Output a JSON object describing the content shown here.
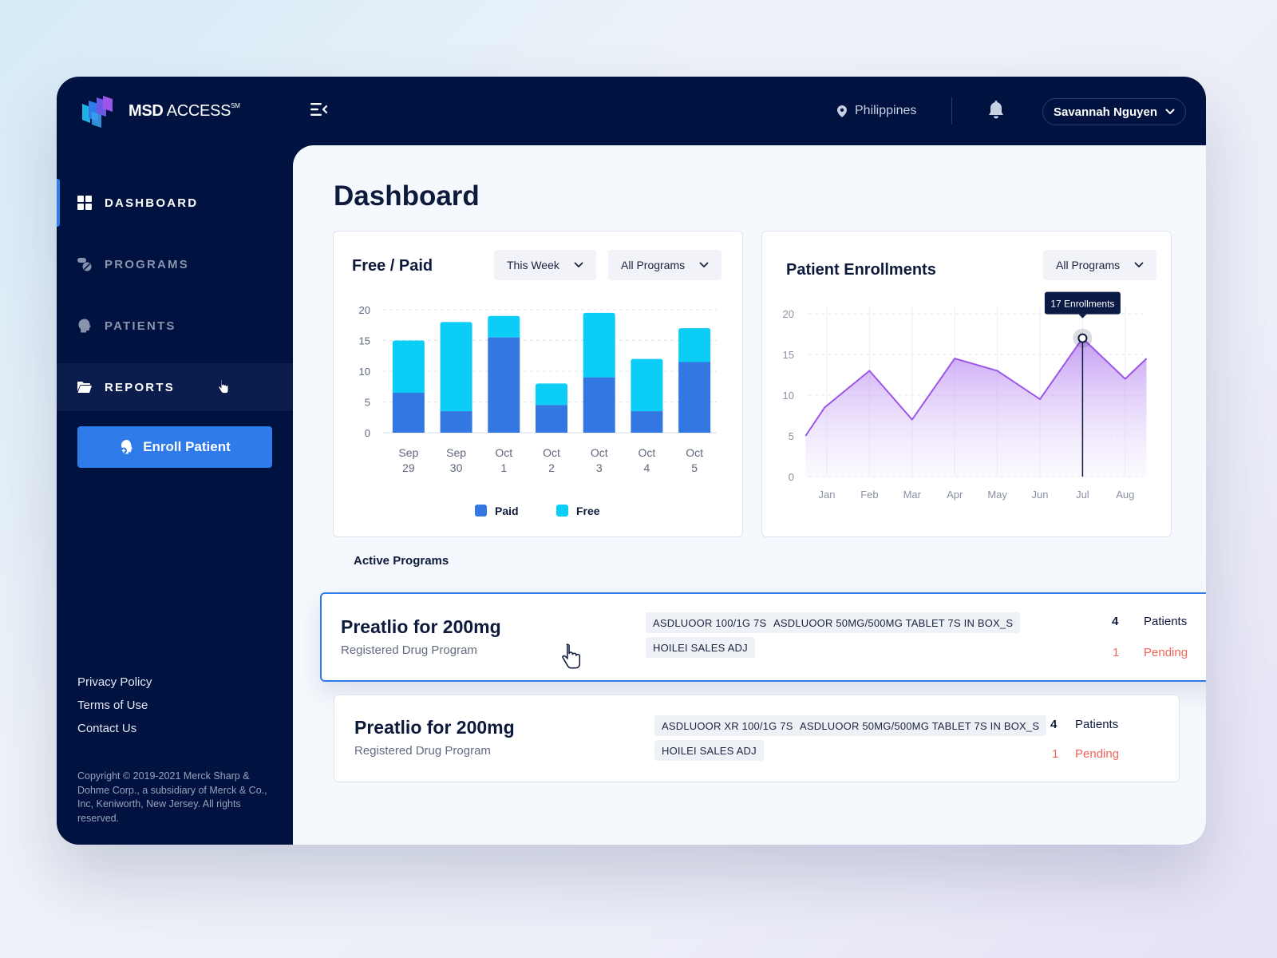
{
  "app": {
    "brand_bold": "MSD",
    "brand_rest": " ACCESS",
    "brand_mark": "SM",
    "location": "Philippines",
    "user_name": "Savannah Nguyen"
  },
  "sidebar": {
    "items": [
      {
        "label": "DASHBOARD",
        "icon": "grid-icon"
      },
      {
        "label": "PROGRAMS",
        "icon": "pills-icon"
      },
      {
        "label": "PATIENTS",
        "icon": "head-icon"
      },
      {
        "label": "REPORTS",
        "icon": "folder-icon"
      }
    ],
    "enroll_label": "Enroll Patient",
    "links": [
      "Privacy Policy",
      "Terms of Use",
      "Contact Us"
    ],
    "copyright": "Copyright © 2019-2021 Merck Sharp & Dohme Corp., a subsidiary of Merck & Co., Inc, Keniworth, New Jersey. All rights reserved."
  },
  "main": {
    "title": "Dashboard",
    "free_paid": {
      "title": "Free / Paid",
      "period": "This Week",
      "program": "All Programs"
    },
    "enrollments": {
      "title": "Patient Enrollments",
      "program": "All Programs",
      "tooltip": "17 Enrollments"
    },
    "active_programs_label": "Active Programs",
    "programs": [
      {
        "name": "Preatlio for 200mg",
        "subtitle": "Registered Drug Program",
        "tags": [
          "ASDLUOOR 100/1G 7S",
          "ASDLUOOR 50MG/500MG TABLET 7S IN BOX_S",
          "HOILEI SALES ADJ"
        ],
        "patients": "4",
        "patients_label": "Patients",
        "pending": "1",
        "pending_label": "Pending"
      },
      {
        "name": "Preatlio for 200mg",
        "subtitle": "Registered Drug Program",
        "tags": [
          "ASDLUOOR XR 100/1G 7S",
          "ASDLUOOR 50MG/500MG TABLET 7S IN BOX_S",
          "HOILEI SALES ADJ"
        ],
        "patients": "4",
        "patients_label": "Patients",
        "pending": "1",
        "pending_label": "Pending"
      }
    ]
  },
  "colors": {
    "navy": "#001240",
    "paid": "#3378e2",
    "free": "#0ccdf5",
    "enroll_line": "#9c55e8",
    "pending": "#f0645a",
    "accent_blue": "#2f7bea"
  },
  "chart_data": [
    {
      "type": "bar",
      "stacked": true,
      "categories": [
        [
          "Sep",
          "29"
        ],
        [
          "Sep",
          "30"
        ],
        [
          "Oct",
          "1"
        ],
        [
          "Oct",
          "2"
        ],
        [
          "Oct",
          "3"
        ],
        [
          "Oct",
          "4"
        ],
        [
          "Oct",
          "5"
        ]
      ],
      "series": [
        {
          "name": "Paid",
          "values": [
            6.5,
            3.5,
            15.5,
            4.5,
            9,
            3.5,
            11.5
          ]
        },
        {
          "name": "Free",
          "values": [
            8.5,
            14.5,
            3.5,
            3.5,
            10.5,
            8.5,
            5.5
          ]
        }
      ],
      "yticks": [
        0,
        5,
        10,
        15,
        20
      ],
      "ylim": [
        0,
        20
      ],
      "grid": true,
      "legend": "bottom"
    },
    {
      "type": "area",
      "x": [
        "Jan",
        "Feb",
        "Mar",
        "Apr",
        "May",
        "Jun",
        "Jul",
        "Aug"
      ],
      "points": [
        {
          "x": 0.5,
          "y": 5
        },
        {
          "x": 0.95,
          "y": 8.5
        },
        {
          "x": 2,
          "y": 13
        },
        {
          "x": 3,
          "y": 7
        },
        {
          "x": 4,
          "y": 14.5
        },
        {
          "x": 5,
          "y": 13
        },
        {
          "x": 6,
          "y": 9.5
        },
        {
          "x": 7,
          "y": 17
        },
        {
          "x": 8,
          "y": 12
        },
        {
          "x": 8.5,
          "y": 14.5
        }
      ],
      "yticks": [
        0,
        5,
        10,
        15,
        20
      ],
      "ylim": [
        0,
        20
      ],
      "highlight": {
        "x": 7,
        "y": 17
      },
      "grid": true
    }
  ]
}
